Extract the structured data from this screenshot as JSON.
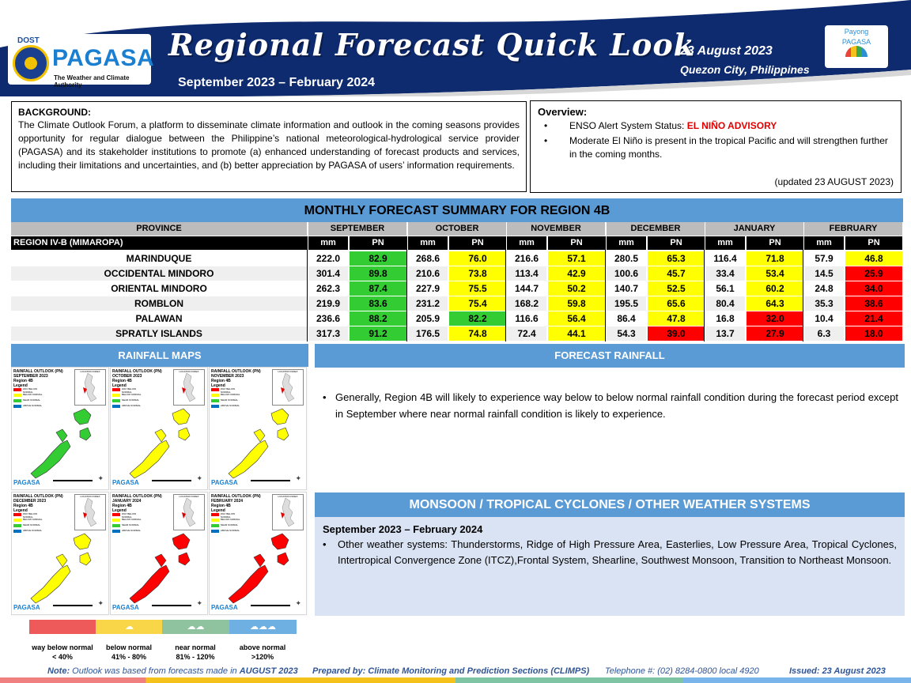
{
  "header": {
    "logo_dost": "DOST",
    "logo_name": "PAGASA",
    "logo_tagline": "The Weather and Climate Authority",
    "title": "Regional Forecast Quick Look",
    "period": "September 2023 – February 2024",
    "date": "23 August 2023",
    "location": "Quezon City, Philippines",
    "payong_line1": "Payong",
    "payong_line2": "PAGASA"
  },
  "background": {
    "heading": "BACKGROUND:",
    "text": "The Climate Outlook Forum, a platform to disseminate climate information and outlook in the coming seasons provides opportunity for regular dialogue between the Philippine’s national meteorological-hydrological service provider (PAGASA) and its stakeholder institutions to promote (a) enhanced understanding of forecast products and services, including their limitations and uncertainties, and (b) better appreciation by PAGASA of users’ information requirements."
  },
  "overview": {
    "heading": "Overview:",
    "enso_label": "ENSO Alert System Status: ",
    "enso_status": "EL NIÑO ADVISORY",
    "item2": "Moderate El Niño is present in the tropical Pacific and will strengthen further in the coming months.",
    "updated": "(updated 23 AUGUST 2023)"
  },
  "table": {
    "title": "MONTHLY FORECAST SUMMARY FOR REGION 4B",
    "province_header": "PROVINCE",
    "region_label": "REGION IV-B  (MIMAROPA)",
    "mm_label": "mm",
    "pn_label": "PN",
    "months": [
      "SEPTEMBER",
      "OCTOBER",
      "NOVEMBER",
      "DECEMBER",
      "JANUARY",
      "FEBRUARY"
    ],
    "rows": [
      {
        "province": "MARINDUQUE",
        "mm": [
          "222.0",
          "268.6",
          "216.6",
          "280.5",
          "116.4",
          "57.9"
        ],
        "pn": [
          "82.9",
          "76.0",
          "57.1",
          "65.3",
          "71.8",
          "46.8"
        ]
      },
      {
        "province": "OCCIDENTAL MINDORO",
        "mm": [
          "301.4",
          "210.6",
          "113.4",
          "100.6",
          "33.4",
          "14.5"
        ],
        "pn": [
          "89.8",
          "73.8",
          "42.9",
          "45.7",
          "53.4",
          "25.9"
        ]
      },
      {
        "province": "ORIENTAL MINDORO",
        "mm": [
          "262.3",
          "227.9",
          "144.7",
          "140.7",
          "56.1",
          "24.8"
        ],
        "pn": [
          "87.4",
          "75.5",
          "50.2",
          "52.5",
          "60.2",
          "34.0"
        ]
      },
      {
        "province": "ROMBLON",
        "mm": [
          "219.9",
          "231.2",
          "168.2",
          "195.5",
          "80.4",
          "35.3"
        ],
        "pn": [
          "83.6",
          "75.4",
          "59.8",
          "65.6",
          "64.3",
          "38.6"
        ]
      },
      {
        "province": "PALAWAN",
        "mm": [
          "236.6",
          "205.9",
          "116.6",
          "86.4",
          "16.8",
          "10.4"
        ],
        "pn": [
          "88.2",
          "82.2",
          "56.4",
          "47.8",
          "32.0",
          "21.4"
        ]
      },
      {
        "province": "SPRATLY ISLANDS",
        "mm": [
          "317.3",
          "176.5",
          "72.4",
          "54.3",
          "13.7",
          "6.3"
        ],
        "pn": [
          "91.2",
          "74.8",
          "44.1",
          "39.0",
          "27.9",
          "18.0"
        ]
      }
    ]
  },
  "category_colors": {
    "way_below": "#ff0000",
    "below": "#ffff00",
    "near": "#33cc33",
    "above": "#0070c0"
  },
  "rainfall_maps": {
    "heading": "RAINFALL MAPS",
    "inset_label": "LOCATION INDEX",
    "logo": "PAGASA",
    "legend_title": "Legend",
    "legend_items": [
      "WAY BELOW NORMAL",
      "BELOW NORMAL",
      "NEAR NORMAL",
      "ABOVE NORMAL"
    ],
    "maps": [
      {
        "title": "RAINFALL OUTLOOK (PN)",
        "month": "SEPTEMBER 2023",
        "region": "Region 4B",
        "category": "near"
      },
      {
        "title": "RAINFALL OUTLOOK (PN)",
        "month": "OCTOBER 2023",
        "region": "Region 4B",
        "category": "below"
      },
      {
        "title": "RAINFALL OUTLOOK (PN)",
        "month": "NOVEMBER 2023",
        "region": "Region 4B",
        "category": "below"
      },
      {
        "title": "RAINFALL OUTLOOK (PN)",
        "month": "DECEMBER 2023",
        "region": "Region 4B",
        "category": "below"
      },
      {
        "title": "RAINFALL OUTLOOK (PN)",
        "month": "JANUARY 2024",
        "region": "Region 4B",
        "category": "way_below"
      },
      {
        "title": "RAINFALL OUTLOOK (PN)",
        "month": "FEBRUARY 2024",
        "region": "Region 4B",
        "category": "way_below"
      }
    ],
    "legend": [
      {
        "label": "way below normal",
        "range": "< 40%",
        "color": "#ee5a5a"
      },
      {
        "label": "below normal",
        "range": "41% -  80%",
        "color": "#f8d648"
      },
      {
        "label": "near normal",
        "range": "81% - 120%",
        "color": "#8fc3a0"
      },
      {
        "label": "above normal",
        "range": ">120%",
        "color": "#6fb0e3"
      }
    ]
  },
  "forecast_rainfall": {
    "heading": "FORECAST RAINFALL",
    "text": "Generally, Region 4B will likely to experience way below to below normal rainfall condition during the forecast period except in September where near normal rainfall condition is likely to experience."
  },
  "monsoon": {
    "heading": "MONSOON / TROPICAL CYCLONES / OTHER WEATHER SYSTEMS",
    "period": "September 2023 – February 2024",
    "text": "Other weather systems: Thunderstorms,  Ridge of High Pressure Area,  Easterlies, Low Pressure Area, Tropical Cyclones, Intertropical Convergence Zone (ITCZ),Frontal System, Shearline, Southwest Monsoon, Transition to Northeast Monsoon."
  },
  "footer": {
    "note_label": "Note:",
    "note_text": " Outlook was based from forecasts made in ",
    "note_month": "AUGUST 2023",
    "prepared": "Prepared by: Climate Monitoring and Prediction Sections (CLIMPS)",
    "telephone": "Telephone #:  (02) 8284-0800 local 4920",
    "issued": "Issued: 23 August 2023"
  }
}
